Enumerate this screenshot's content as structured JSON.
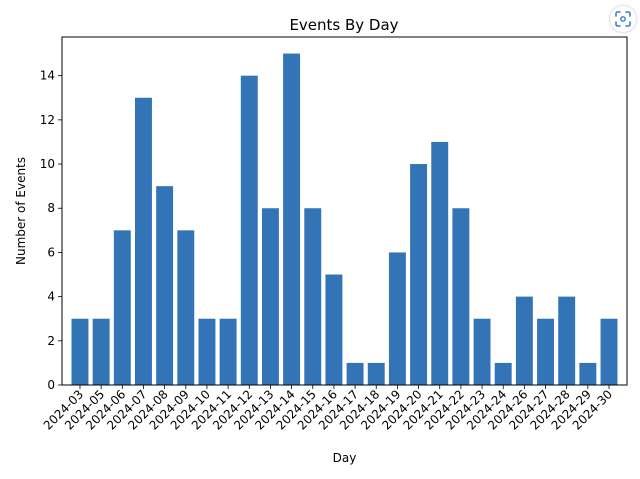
{
  "chart_data": {
    "type": "bar",
    "title": "Events By Day",
    "xlabel": "Day",
    "ylabel": "Number of Events",
    "categories": [
      "2024-03",
      "2024-05",
      "2024-06",
      "2024-07",
      "2024-08",
      "2024-09",
      "2024-10",
      "2024-11",
      "2024-12",
      "2024-13",
      "2024-14",
      "2024-15",
      "2024-16",
      "2024-17",
      "2024-18",
      "2024-19",
      "2024-20",
      "2024-21",
      "2024-22",
      "2024-23",
      "2024-24",
      "2024-26",
      "2024-27",
      "2024-28",
      "2024-29",
      "2024-30"
    ],
    "values": [
      3,
      3,
      7,
      13,
      9,
      7,
      3,
      3,
      14,
      8,
      15,
      8,
      5,
      1,
      1,
      6,
      10,
      11,
      8,
      3,
      1,
      4,
      3,
      4,
      1,
      3
    ],
    "ylim": [
      0,
      15.75
    ],
    "yticks": [
      0,
      2,
      4,
      6,
      8,
      10,
      12,
      14
    ],
    "grid": false,
    "bar_color": "#3274b6"
  },
  "toolbar": {
    "scan_icon": "screenshot-scan-icon"
  }
}
